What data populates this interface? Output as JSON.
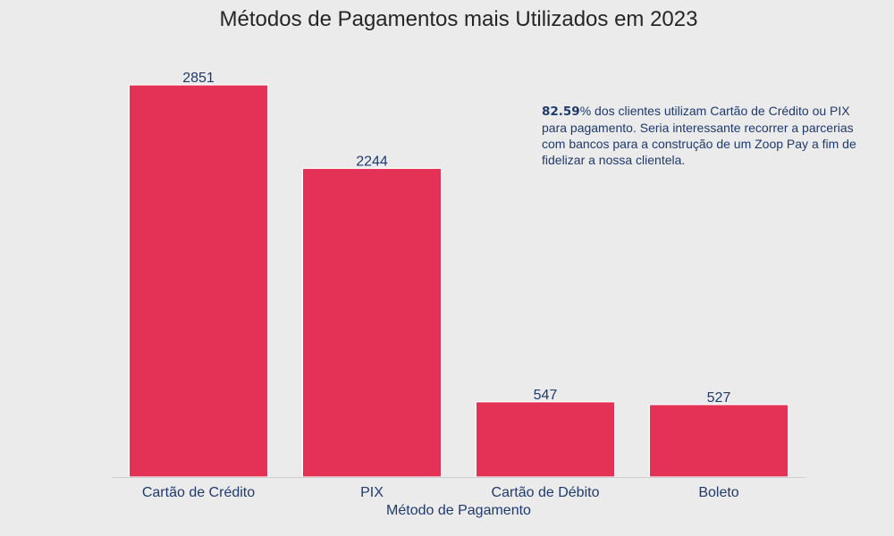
{
  "chart_data": {
    "type": "bar",
    "title": "Métodos de Pagamentos mais Utilizados em 2023",
    "xlabel": "Método de Pagamento",
    "ylabel": "",
    "categories": [
      "Cartão de Crédito",
      "PIX",
      "Cartão de Débito",
      "Boleto"
    ],
    "values": [
      2851,
      2244,
      547,
      527
    ],
    "ylim": [
      0,
      2851
    ],
    "grid": false,
    "annotation": {
      "highlight": "82.59",
      "text": "% dos clientes utilizam Cartão de Crédito ou PIX para pagamento. Seria interessante recorrer a parcerias com bancos para a construção de um Zoop Pay a fim de fidelizar a nossa clientela."
    },
    "colors": {
      "bar": "#e33256",
      "text": "#1f3a6e",
      "background": "#ebebeb",
      "axis_line": "#cfcfcf"
    }
  }
}
